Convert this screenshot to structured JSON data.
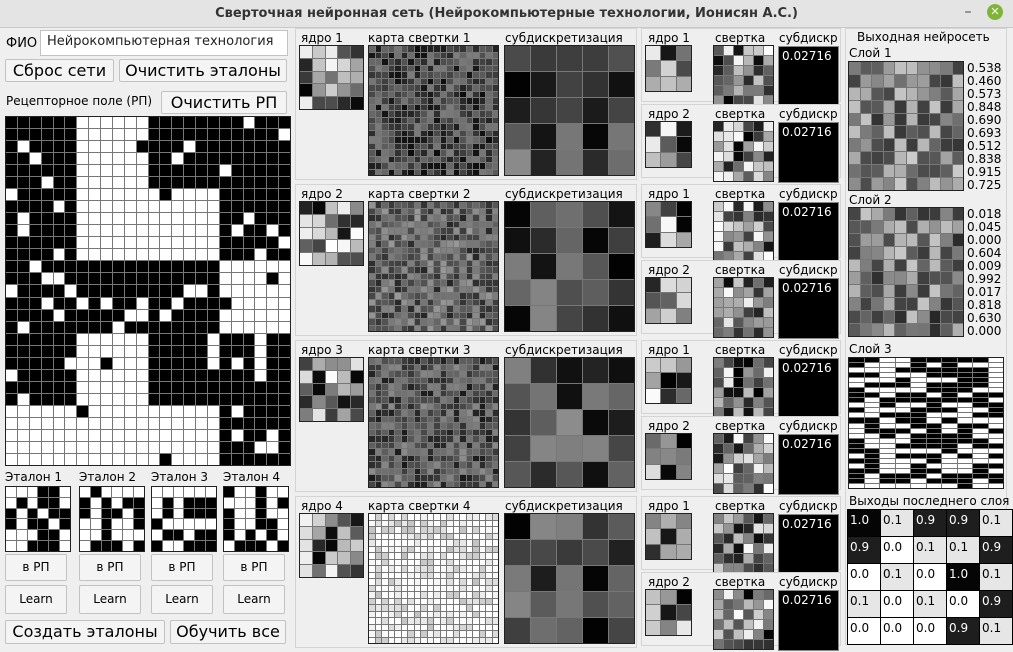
{
  "window": {
    "title": "Сверточная нейронная сеть (Нейрокомпьютерные технологии, Ионисян А.С.)",
    "min_glyph": "–",
    "close_glyph": "✕"
  },
  "left": {
    "fio_label": "ФИО",
    "fio_value": "Нейрокомпьютерная технология",
    "reset_btn": "Сброс сети",
    "clear_etalons_btn": "Очистить эталоны",
    "rp_label": "Рецепторное поле (РП)",
    "clear_rp_btn": "Очистить  РП",
    "etalons": [
      {
        "label": "Эталон 1",
        "to_rp": "в РП",
        "learn": "Learn"
      },
      {
        "label": "Эталон 2",
        "to_rp": "в РП",
        "learn": "Learn"
      },
      {
        "label": "Эталон 3",
        "to_rp": "в РП",
        "learn": "Learn"
      },
      {
        "label": "Эталон 4",
        "to_rp": "в РП",
        "learn": "Learn"
      }
    ],
    "create_btn": "Создать эталоны",
    "train_all_btn": "Обучить все"
  },
  "conv": [
    {
      "kernel": "ядро 1",
      "map": "карта свертки 1",
      "sub": "субдискретизация"
    },
    {
      "kernel": "ядро 2",
      "map": "карта свертки 2",
      "sub": "субдискретизация"
    },
    {
      "kernel": "ядро 3",
      "map": "карта свертки 3",
      "sub": "субдискретизация"
    },
    {
      "kernel": "ядро 4",
      "map": "карта свертки 4",
      "sub": "субдискретизация"
    }
  ],
  "second": {
    "kernel1": "ядро 1",
    "kernel2": "ядро 2",
    "conv": "свертка",
    "sub": "субдискр",
    "values": [
      "0.02716",
      "0.02716",
      "0.02716",
      "0.02716",
      "0.02716",
      "0.02716",
      "0.02716",
      "0.02716"
    ]
  },
  "output": {
    "title": "Выходная нейросеть",
    "layer1": "Слой 1",
    "layer1_values": [
      "0.538",
      "0.460",
      "0.573",
      "0.848",
      "0.690",
      "0.693",
      "0.512",
      "0.838",
      "0.915",
      "0.725"
    ],
    "layer2": "Слой 2",
    "layer2_values": [
      "0.018",
      "0.045",
      "0.000",
      "0.604",
      "0.009",
      "0.992",
      "0.017",
      "0.818",
      "0.630",
      "0.000"
    ],
    "layer3": "Слой 3",
    "last_label": "Выходы последнего слоя",
    "last_table": [
      [
        "1.0",
        "0.1",
        "0.9",
        "0.9",
        "0.1"
      ],
      [
        "0.9",
        "0.0",
        "0.1",
        "0.1",
        "0.9"
      ],
      [
        "0.0",
        "0.1",
        "0.0",
        "1.0",
        "0.1"
      ],
      [
        "0.1",
        "0.0",
        "0.1",
        "0.0",
        "0.9"
      ],
      [
        "0.0",
        "0.0",
        "0.0",
        "0.9",
        "0.1"
      ]
    ]
  }
}
